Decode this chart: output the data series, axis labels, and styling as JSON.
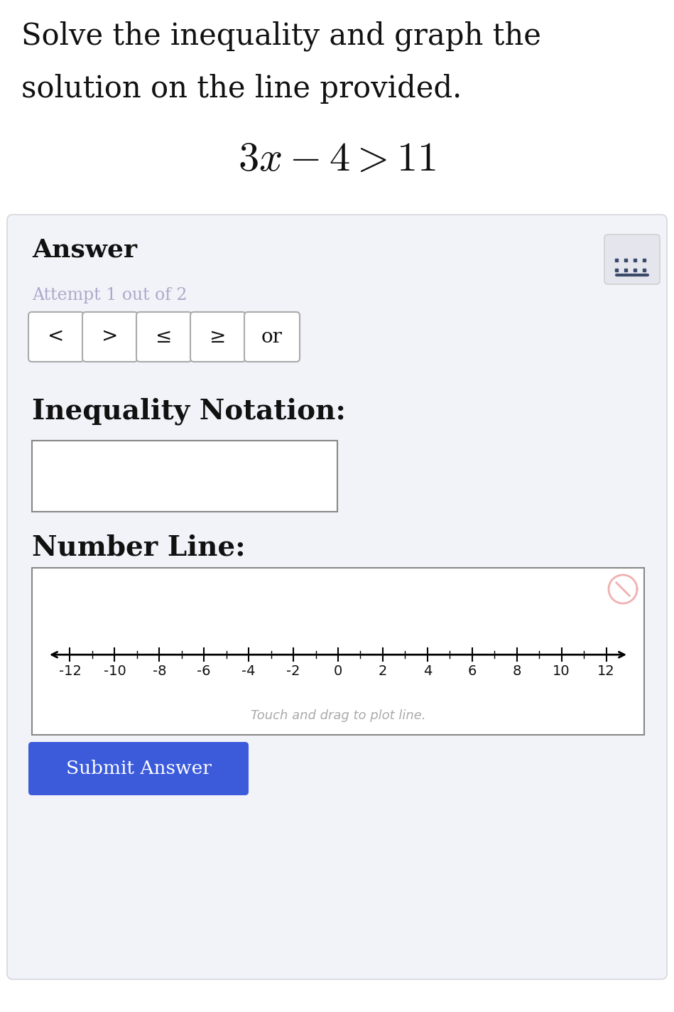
{
  "bg_color": "#ffffff",
  "answer_section_bg": "#f2f3f8",
  "title_line1": "Solve the inequality and graph the",
  "title_line2": "solution on the line provided.",
  "answer_label": "Answer",
  "attempt_text": "Attempt 1 out of 2",
  "buttons": [
    "<",
    ">",
    "≤",
    "≥",
    "or"
  ],
  "inequality_label": "Inequality Notation:",
  "number_line_label": "Number Line:",
  "drag_text": "Touch and drag to plot line.",
  "submit_text": "Submit Answer",
  "submit_bg": "#3b5bdb",
  "submit_text_color": "#ffffff",
  "number_line_ticks": [
    -12,
    -10,
    -8,
    -6,
    -4,
    -2,
    0,
    2,
    4,
    6,
    8,
    10,
    12
  ],
  "title_fontsize": 30,
  "equation_fontsize": 42,
  "answer_fontsize": 26,
  "attempt_fontsize": 17,
  "button_fontsize": 20,
  "ineq_label_fontsize": 28,
  "nl_label_fontsize": 28,
  "nl_tick_fontsize": 14,
  "drag_fontsize": 13,
  "submit_fontsize": 19,
  "kbd_color": "#3a4a6b",
  "cancel_color": "#f0b0b0",
  "tick_label_color": "#111111",
  "attempt_color": "#aaaacc",
  "border_color": "#cccccc",
  "box_border_color": "#888888"
}
